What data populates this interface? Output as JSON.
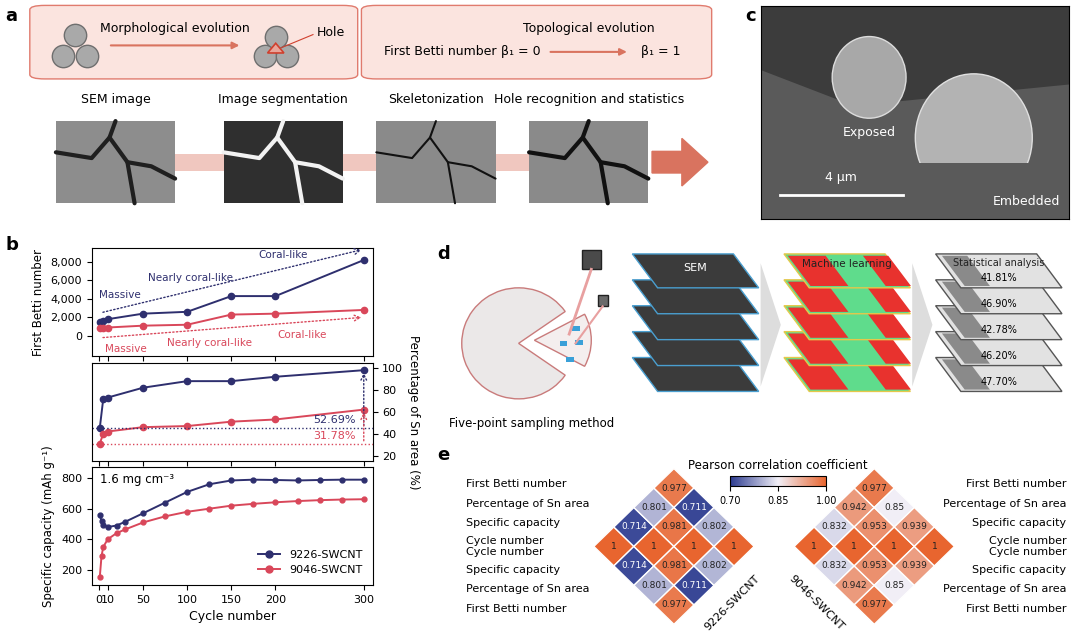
{
  "panel_labels": [
    "a",
    "b",
    "c",
    "d",
    "e"
  ],
  "panel_a": {
    "box1": {
      "title": "Morphological evolution",
      "hole": "Hole"
    },
    "box2": {
      "label": "First Betti number",
      "before": "β₁ = 0",
      "title": "Topological evolution",
      "after": "β₁ = 1"
    },
    "steps": [
      "SEM image",
      "Image segmentation",
      "Skeletonization",
      "Hole recognition and statistics"
    ]
  },
  "panel_c": {
    "labels": [
      "Exposed",
      "Embedded"
    ],
    "scale_bar": "4 µm"
  },
  "panel_d": {
    "sampling": "Five-point sampling method",
    "stages": [
      "SEM",
      "Machine learning",
      "Statistical analysis"
    ],
    "percentages": [
      "41.81%",
      "46.90%",
      "42.78%",
      "46.20%",
      "47.70%"
    ]
  },
  "chart_data": [
    {
      "type": "line",
      "ylabel": "First Betti number",
      "x": [
        1,
        5,
        10,
        50,
        100,
        150,
        200,
        300
      ],
      "xlim": [
        -8,
        310
      ],
      "xticks": [
        0,
        10,
        50,
        100,
        150,
        200,
        300
      ],
      "ylim": [
        -2200,
        9500
      ],
      "yticks": [
        0,
        {
          "value": 2000,
          "label": "2,000"
        },
        {
          "value": 4000,
          "label": "4,000"
        },
        {
          "value": 6000,
          "label": "6,000"
        },
        {
          "value": 8000,
          "label": "8,000"
        }
      ],
      "tick_labels": "y",
      "series": [
        {
          "name": "9226-SWCNT",
          "color": "#2e2f6e",
          "marker": "o",
          "values": [
            1500,
            1600,
            1800,
            2400,
            2600,
            4300,
            4300,
            8200
          ]
        },
        {
          "name": "9046-SWCNT",
          "color": "#d9475a",
          "marker": "o",
          "values": [
            800,
            850,
            900,
            1100,
            1200,
            2300,
            2400,
            2800
          ]
        }
      ],
      "annotations": [
        [
          "Massive",
          "Nearly coral-like",
          "Coral-like"
        ],
        [
          "Massive",
          "Nearly coral-like",
          "Coral-like"
        ]
      ]
    },
    {
      "type": "line",
      "ylabel": "Percentage of Sn area (%)",
      "x": [
        1,
        5,
        10,
        50,
        100,
        150,
        200,
        300
      ],
      "xlim": [
        -8,
        310
      ],
      "xticks": [
        0,
        10,
        50,
        100,
        150,
        200,
        300
      ],
      "y2lim": [
        15,
        105
      ],
      "y2ticks": [
        20,
        40,
        60,
        80,
        100
      ],
      "tick_labels": "y",
      "series": [
        {
          "name": "9226-SWCNT",
          "color": "#2e2f6e",
          "marker": "o",
          "axis": "y2",
          "values": [
            45,
            72,
            73,
            82,
            88,
            88,
            92,
            98
          ]
        },
        {
          "name": "9046-SWCNT",
          "color": "#d9475a",
          "marker": "o",
          "axis": "y2",
          "values": [
            31,
            40,
            42,
            46,
            47,
            51,
            53,
            62
          ]
        }
      ],
      "annotations": [
        "52.69%",
        "31.78%"
      ]
    },
    {
      "type": "line",
      "ylabel": "Specific capacity (mAh g⁻¹)",
      "xlabel": "Cycle number",
      "note": "1.6 mg cm⁻³",
      "x": [
        1,
        3,
        5,
        10,
        20,
        30,
        50,
        75,
        100,
        125,
        150,
        175,
        200,
        225,
        250,
        275,
        300
      ],
      "xlim": [
        -8,
        310
      ],
      "xticks": [
        0,
        10,
        50,
        100,
        150,
        200,
        300
      ],
      "ylim": [
        100,
        870
      ],
      "yticks": [
        200,
        400,
        600,
        800
      ],
      "legend": "lower right",
      "series": [
        {
          "name": "9226-SWCNT",
          "color": "#2e2f6e",
          "marker": "o",
          "values": [
            560,
            520,
            495,
            480,
            490,
            515,
            570,
            640,
            710,
            760,
            785,
            790,
            788,
            785,
            788,
            790,
            790
          ]
        },
        {
          "name": "9046-SWCNT",
          "color": "#d9475a",
          "marker": "o",
          "values": [
            150,
            290,
            350,
            400,
            440,
            465,
            510,
            550,
            580,
            600,
            620,
            632,
            642,
            650,
            656,
            660,
            662
          ]
        }
      ]
    },
    {
      "type": "heatmap",
      "title": "9226-SWCNT",
      "categories": [
        "First Betti number",
        "Percentage of Sn area",
        "Specific capacity",
        "Cycle number"
      ],
      "cells": [
        [
          1,
          0.714,
          0.801,
          0.977
        ],
        [
          0.714,
          1,
          0.981,
          0.711
        ],
        [
          0.801,
          0.981,
          1,
          0.802
        ],
        [
          0.977,
          0.711,
          0.802,
          1
        ]
      ],
      "colorbar": {
        "label": "Pearson correlation coefficient",
        "range": [
          0.7,
          1.0
        ],
        "ticks": [
          {
            "value": 0.7,
            "label": "0.70"
          },
          {
            "value": 0.85,
            "label": "0.85"
          },
          {
            "value": 1.0,
            "label": "1.00"
          }
        ],
        "colors": [
          "#2b3a8f",
          "#f1eff7",
          "#e8652f"
        ]
      }
    },
    {
      "type": "heatmap",
      "title": "9046-SWCNT",
      "categories": [
        "First Betti number",
        "Percentage of Sn area",
        "Specific capacity",
        "Cycle number"
      ],
      "cells": [
        [
          1,
          0.832,
          0.942,
          0.977
        ],
        [
          0.832,
          1,
          0.953,
          0.85
        ],
        [
          0.942,
          0.953,
          1,
          0.939
        ],
        [
          0.977,
          0.85,
          0.939,
          1
        ]
      ]
    }
  ]
}
